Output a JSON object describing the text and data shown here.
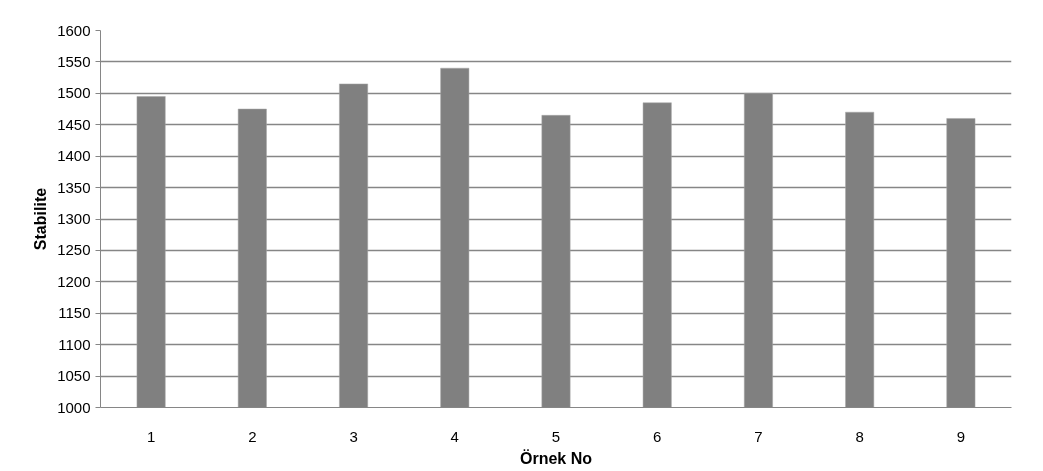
{
  "chart_data": {
    "type": "bar",
    "xlabel": "Örnek No",
    "ylabel": "Stabilite",
    "categories": [
      "1",
      "2",
      "3",
      "4",
      "5",
      "6",
      "7",
      "8",
      "9"
    ],
    "values": [
      1495,
      1475,
      1515,
      1540,
      1465,
      1485,
      1500,
      1470,
      1460
    ],
    "color": "#808080",
    "ylim": [
      1000,
      1600
    ],
    "yticks": [
      1000,
      1050,
      1100,
      1150,
      1200,
      1250,
      1300,
      1350,
      1400,
      1450,
      1500,
      1550,
      1600
    ],
    "grid": "y"
  }
}
